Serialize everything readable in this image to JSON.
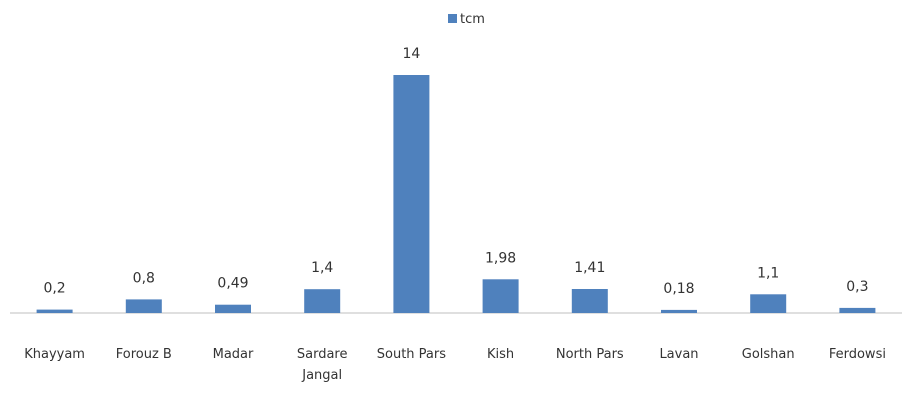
{
  "chart_data": {
    "type": "bar",
    "categories": [
      "Khayyam",
      "Forouz B",
      "Madar",
      "Sardare Jangal",
      "South Pars",
      "Kish",
      "North Pars",
      "Lavan",
      "Golshan",
      "Ferdowsi"
    ],
    "category_lines": [
      [
        "Khayyam"
      ],
      [
        "Forouz B"
      ],
      [
        "Madar"
      ],
      [
        "Sardare",
        "Jangal"
      ],
      [
        "South Pars"
      ],
      [
        "Kish"
      ],
      [
        "North Pars"
      ],
      [
        "Lavan"
      ],
      [
        "Golshan"
      ],
      [
        "Ferdowsi"
      ]
    ],
    "series": [
      {
        "name": "tcm",
        "values": [
          0.2,
          0.8,
          0.49,
          1.4,
          14,
          1.98,
          1.41,
          0.18,
          1.1,
          0.3
        ],
        "labels": [
          "0,2",
          "0,8",
          "0,49",
          "1,4",
          "14",
          "1,98",
          "1,41",
          "0,18",
          "1,1",
          "0,3"
        ]
      }
    ],
    "ylim": [
      0,
      16
    ],
    "grid": false,
    "legend_position": "top",
    "bar_color": "#4f81bd",
    "axis_color": "#bfbfbf"
  }
}
